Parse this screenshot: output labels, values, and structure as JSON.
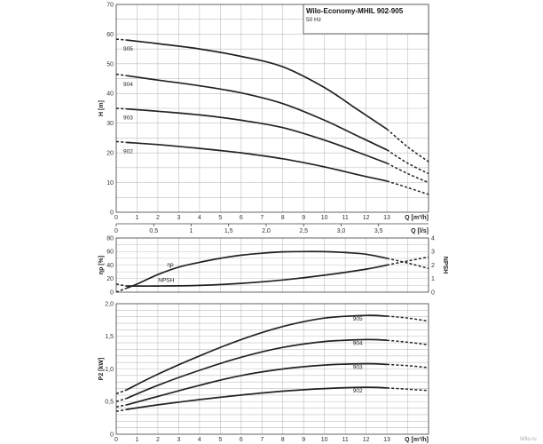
{
  "title": "Wilo-Economy-MHIL 902-905",
  "subtitle": "50 Hz",
  "watermark": "Wilo.ru",
  "chart_data": [
    {
      "id": "head",
      "type": "line",
      "xlabel": "Q [m³/h]",
      "ylabel": "H [m]",
      "xlim": [
        0,
        15
      ],
      "ylim": [
        0,
        70
      ],
      "xticks": [
        0,
        1,
        2,
        3,
        4,
        5,
        6,
        7,
        8,
        9,
        10,
        11,
        12,
        13
      ],
      "yticks": [
        0,
        10,
        20,
        30,
        40,
        50,
        60,
        70
      ],
      "secondary_x": {
        "label": "Q [l/s]",
        "ticks": [
          0,
          0.5,
          1,
          1.5,
          2,
          2.5,
          3,
          3.5
        ],
        "tick_labels": [
          "0",
          "0,5",
          "1",
          "1,5",
          "2,0",
          "2,5",
          "3,0",
          "3,5"
        ]
      },
      "series": [
        {
          "name": "905",
          "solid": [
            [
              0.5,
              58
            ],
            [
              2,
              56.8
            ],
            [
              4,
              55
            ],
            [
              6,
              52.5
            ],
            [
              8,
              49
            ],
            [
              10,
              42
            ],
            [
              11.5,
              35
            ],
            [
              13,
              28
            ]
          ],
          "dashed": [
            [
              0,
              58.3
            ],
            [
              0.5,
              58
            ]
          ],
          "dashed_end": [
            [
              13,
              28
            ],
            [
              14,
              22
            ],
            [
              15,
              17
            ]
          ]
        },
        {
          "name": "904",
          "solid": [
            [
              0.5,
              46
            ],
            [
              2,
              44.5
            ],
            [
              4,
              42.6
            ],
            [
              6,
              40.2
            ],
            [
              8,
              36.6
            ],
            [
              10,
              31
            ],
            [
              11.5,
              26
            ],
            [
              13,
              21
            ]
          ],
          "dashed": [
            [
              0,
              46.5
            ],
            [
              0.5,
              46
            ]
          ],
          "dashed_end": [
            [
              13,
              21
            ],
            [
              14,
              16.5
            ],
            [
              15,
              13
            ]
          ]
        },
        {
          "name": "903",
          "solid": [
            [
              0.5,
              34.8
            ],
            [
              2,
              34
            ],
            [
              4,
              32.8
            ],
            [
              6,
              31
            ],
            [
              8,
              28.5
            ],
            [
              10,
              24.3
            ],
            [
              11.5,
              20.5
            ],
            [
              13,
              16.5
            ]
          ],
          "dashed": [
            [
              0,
              35
            ],
            [
              0.5,
              34.8
            ]
          ],
          "dashed_end": [
            [
              13,
              16.5
            ],
            [
              14,
              13
            ],
            [
              15,
              10
            ]
          ]
        },
        {
          "name": "902",
          "solid": [
            [
              0.5,
              23.5
            ],
            [
              2,
              22.8
            ],
            [
              4,
              21.5
            ],
            [
              6,
              20
            ],
            [
              8,
              18
            ],
            [
              10,
              15.3
            ],
            [
              11.5,
              12.8
            ],
            [
              13,
              10.5
            ]
          ],
          "dashed": [
            [
              0,
              23.8
            ],
            [
              0.5,
              23.5
            ]
          ],
          "dashed_end": [
            [
              13,
              10.5
            ],
            [
              14,
              8.3
            ],
            [
              15,
              6
            ]
          ]
        }
      ]
    },
    {
      "id": "efficiency",
      "type": "line",
      "ylabel_left": "ηp [%]",
      "ylabel_right": "NPSH",
      "xlim": [
        0,
        15
      ],
      "ylim_left": [
        0,
        80
      ],
      "ylim_right": [
        0,
        4
      ],
      "yticks_left": [
        0,
        20,
        40,
        60,
        80
      ],
      "yticks_right": [
        0,
        1,
        2,
        3,
        4
      ],
      "series": [
        {
          "name": "ηp",
          "solid": [
            [
              0.5,
              6
            ],
            [
              1,
              12
            ],
            [
              2,
              26
            ],
            [
              3,
              37
            ],
            [
              4,
              44
            ],
            [
              5,
              50
            ],
            [
              6,
              54.5
            ],
            [
              7,
              57.5
            ],
            [
              8,
              59.5
            ],
            [
              9,
              60
            ],
            [
              10,
              59.8
            ],
            [
              11,
              58.5
            ],
            [
              12,
              56
            ],
            [
              13,
              50
            ]
          ],
          "dashed": [
            [
              0,
              0
            ],
            [
              0.5,
              6
            ]
          ],
          "dashed_end": [
            [
              13,
              50
            ],
            [
              14,
              43
            ],
            [
              15,
              35
            ]
          ]
        },
        {
          "name": "NPSH",
          "solid": [
            [
              0.5,
              0.45
            ],
            [
              2,
              0.45
            ],
            [
              4,
              0.5
            ],
            [
              6,
              0.65
            ],
            [
              8,
              0.9
            ],
            [
              10,
              1.25
            ],
            [
              12,
              1.7
            ],
            [
              13,
              2
            ]
          ],
          "dashed": [
            [
              0,
              0.6
            ],
            [
              0.5,
              0.45
            ]
          ],
          "dashed_end": [
            [
              13,
              2
            ],
            [
              14,
              2.3
            ],
            [
              15,
              2.6
            ]
          ]
        }
      ]
    },
    {
      "id": "power",
      "type": "line",
      "xlabel": "Q [m³/h]",
      "ylabel": "P2 [kW]",
      "xlim": [
        0,
        15
      ],
      "ylim": [
        0,
        2
      ],
      "xticks": [
        0,
        1,
        2,
        3,
        4,
        5,
        6,
        7,
        8,
        9,
        10,
        11,
        12,
        13
      ],
      "yticks": [
        0,
        0.5,
        1,
        1.5,
        2
      ],
      "ytick_labels": [
        "0",
        "0,5",
        "1,0",
        "1,5",
        "2,0"
      ],
      "series": [
        {
          "name": "905",
          "solid": [
            [
              0.5,
              0.68
            ],
            [
              2,
              0.92
            ],
            [
              4,
              1.2
            ],
            [
              6,
              1.45
            ],
            [
              8,
              1.65
            ],
            [
              10,
              1.78
            ],
            [
              12,
              1.82
            ],
            [
              13,
              1.81
            ]
          ],
          "dashed": [
            [
              0,
              0.62
            ],
            [
              0.5,
              0.68
            ]
          ],
          "dashed_end": [
            [
              13,
              1.81
            ],
            [
              14,
              1.78
            ],
            [
              15,
              1.73
            ]
          ]
        },
        {
          "name": "904",
          "solid": [
            [
              0.5,
              0.55
            ],
            [
              2,
              0.75
            ],
            [
              4,
              0.98
            ],
            [
              6,
              1.18
            ],
            [
              8,
              1.33
            ],
            [
              10,
              1.42
            ],
            [
              12,
              1.45
            ],
            [
              13,
              1.44
            ]
          ],
          "dashed": [
            [
              0,
              0.5
            ],
            [
              0.5,
              0.55
            ]
          ],
          "dashed_end": [
            [
              13,
              1.44
            ],
            [
              14,
              1.41
            ],
            [
              15,
              1.37
            ]
          ]
        },
        {
          "name": "903",
          "solid": [
            [
              0.5,
              0.45
            ],
            [
              2,
              0.58
            ],
            [
              4,
              0.75
            ],
            [
              6,
              0.9
            ],
            [
              8,
              1.0
            ],
            [
              10,
              1.06
            ],
            [
              12,
              1.08
            ],
            [
              13,
              1.07
            ]
          ],
          "dashed": [
            [
              0,
              0.42
            ],
            [
              0.5,
              0.45
            ]
          ],
          "dashed_end": [
            [
              13,
              1.07
            ],
            [
              14,
              1.05
            ],
            [
              15,
              1.02
            ]
          ]
        },
        {
          "name": "902",
          "solid": [
            [
              0.5,
              0.38
            ],
            [
              2,
              0.45
            ],
            [
              4,
              0.53
            ],
            [
              6,
              0.6
            ],
            [
              8,
              0.66
            ],
            [
              10,
              0.7
            ],
            [
              12,
              0.72
            ],
            [
              13,
              0.71
            ]
          ],
          "dashed": [
            [
              0,
              0.35
            ],
            [
              0.5,
              0.38
            ]
          ],
          "dashed_end": [
            [
              13,
              0.71
            ],
            [
              14,
              0.69
            ],
            [
              15,
              0.67
            ]
          ]
        }
      ]
    }
  ]
}
